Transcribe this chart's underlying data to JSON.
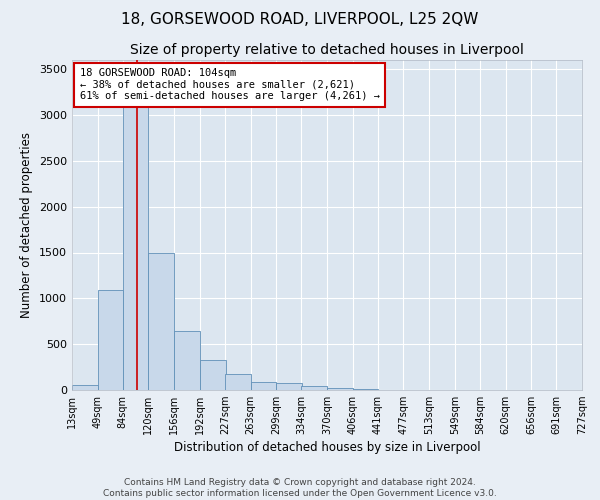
{
  "title": "18, GORSEWOOD ROAD, LIVERPOOL, L25 2QW",
  "subtitle": "Size of property relative to detached houses in Liverpool",
  "xlabel": "Distribution of detached houses by size in Liverpool",
  "ylabel": "Number of detached properties",
  "footer_line1": "Contains HM Land Registry data © Crown copyright and database right 2024.",
  "footer_line2": "Contains public sector information licensed under the Open Government Licence v3.0.",
  "bar_edges": [
    13,
    49,
    84,
    120,
    156,
    192,
    227,
    263,
    299,
    334,
    370,
    406,
    441,
    477,
    513,
    549,
    584,
    620,
    656,
    691,
    727
  ],
  "bar_heights": [
    50,
    1090,
    3430,
    1500,
    640,
    330,
    175,
    90,
    80,
    40,
    25,
    10,
    5,
    3,
    2,
    2,
    1,
    0,
    0,
    0
  ],
  "bar_color": "#c8d8ea",
  "bar_edge_color": "#6090b8",
  "red_line_x": 104,
  "annotation_text": "18 GORSEWOOD ROAD: 104sqm\n← 38% of detached houses are smaller (2,621)\n61% of semi-detached houses are larger (4,261) →",
  "annotation_box_color": "#ffffff",
  "annotation_box_edge_color": "#cc0000",
  "ylim": [
    0,
    3600
  ],
  "yticks": [
    0,
    500,
    1000,
    1500,
    2000,
    2500,
    3000,
    3500
  ],
  "xlim": [
    13,
    727
  ],
  "tick_labels": [
    "13sqm",
    "49sqm",
    "84sqm",
    "120sqm",
    "156sqm",
    "192sqm",
    "227sqm",
    "263sqm",
    "299sqm",
    "334sqm",
    "370sqm",
    "406sqm",
    "441sqm",
    "477sqm",
    "513sqm",
    "549sqm",
    "584sqm",
    "620sqm",
    "656sqm",
    "691sqm",
    "727sqm"
  ],
  "bg_color": "#e8eef5",
  "plot_bg_color": "#dce6f0",
  "grid_color": "#ffffff",
  "title_fontsize": 11,
  "subtitle_fontsize": 10,
  "label_fontsize": 8.5,
  "tick_fontsize": 7,
  "footer_fontsize": 6.5,
  "annotation_fontsize": 7.5
}
